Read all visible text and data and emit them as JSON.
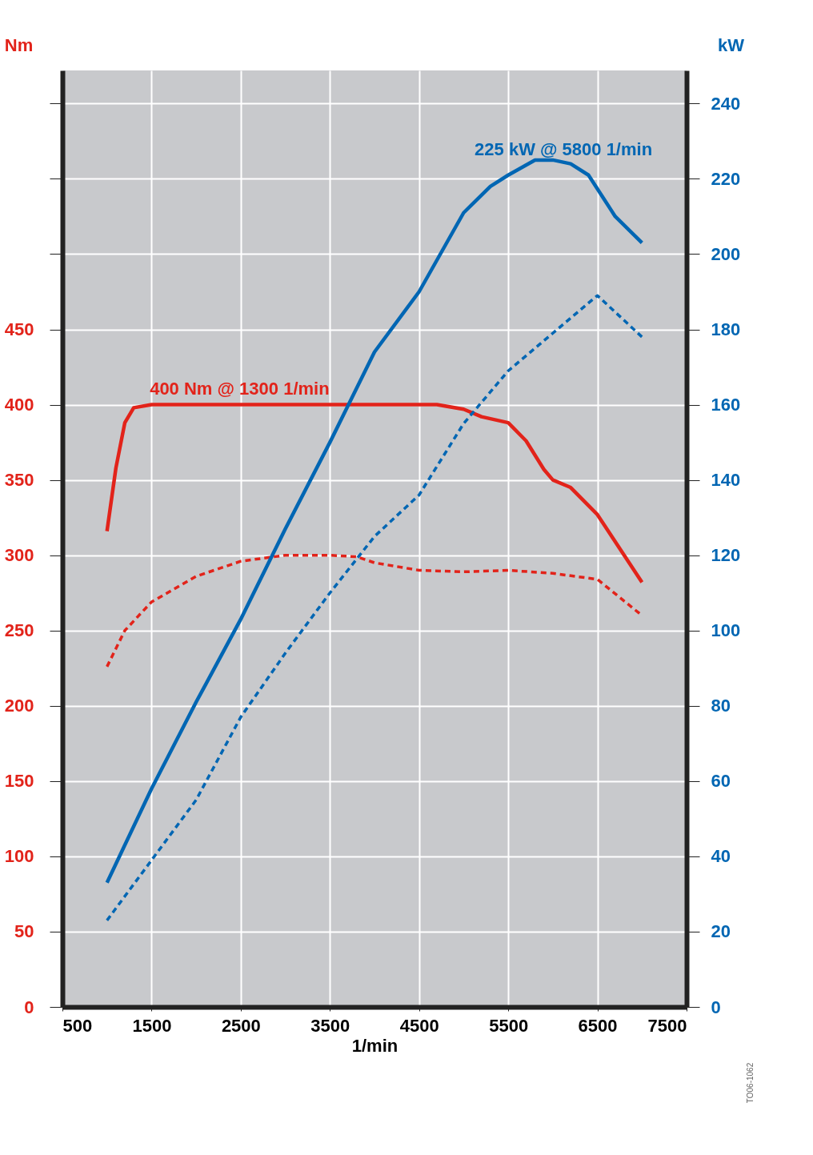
{
  "chart_data": {
    "type": "line",
    "xlabel": "1/min",
    "ylabel": "Nm",
    "y2label": "kW",
    "xlim": [
      500,
      7500
    ],
    "xticks": [
      500,
      1500,
      2500,
      3500,
      4500,
      5500,
      6500,
      7500
    ],
    "ylim": [
      0,
      622
    ],
    "yticks": [
      0,
      50,
      100,
      150,
      200,
      250,
      300,
      350,
      400,
      450,
      {
        "value": 500,
        "label": null
      },
      {
        "value": 550,
        "label": null
      },
      {
        "value": 600,
        "label": null
      }
    ],
    "y2lim": [
      0,
      248.8
    ],
    "y2ticks": [
      0,
      20,
      40,
      60,
      80,
      100,
      120,
      140,
      160,
      180,
      200,
      220,
      240
    ],
    "grid": true,
    "marker": "none",
    "series": [
      {
        "color": "#e2231a",
        "line_style": "solid",
        "x": [
          1000,
          1100,
          1200,
          1300,
          1500,
          2000,
          3000,
          4000,
          4700,
          5000,
          5200,
          5500,
          5700,
          5900,
          6000,
          6200,
          6500,
          7000
        ],
        "values": [
          316,
          358,
          388,
          398,
          400,
          400,
          400,
          400,
          400,
          397,
          392,
          388,
          376,
          357,
          350,
          345,
          327,
          282
        ]
      },
      {
        "color": "#0066b3",
        "line_style": "solid",
        "axis": "y2",
        "x": [
          1000,
          1500,
          2000,
          2500,
          3000,
          3500,
          4000,
          4500,
          5000,
          5300,
          5500,
          5800,
          6000,
          6200,
          6400,
          6700,
          7000
        ],
        "values": [
          33,
          58,
          81,
          103,
          127,
          150,
          174,
          190,
          211,
          218,
          221,
          225,
          225,
          224,
          221,
          210,
          203
        ]
      },
      {
        "color": "#e2231a",
        "line_style": "dashed",
        "x": [
          1000,
          1200,
          1500,
          2000,
          2500,
          3000,
          3500,
          3800,
          4000,
          4500,
          5000,
          5500,
          6000,
          6500,
          7000
        ],
        "values": [
          226,
          250,
          269,
          286,
          296,
          300,
          300,
          299,
          295,
          290,
          289,
          290,
          288,
          284,
          260
        ]
      },
      {
        "color": "#0066b3",
        "line_style": "dashed",
        "axis": "y2",
        "x": [
          1000,
          1500,
          2000,
          2500,
          3000,
          3500,
          4000,
          4500,
          5000,
          5500,
          6000,
          6500,
          7000
        ],
        "values": [
          23,
          39,
          55,
          77,
          94,
          110,
          125,
          136,
          155,
          169,
          179,
          189,
          178
        ]
      }
    ],
    "annotations": [
      {
        "text": "400 Nm @ 1300 1/min",
        "x": 1300,
        "y": 400
      },
      "225 kW @ 5800 1/min",
      "TO06-1062"
    ]
  }
}
